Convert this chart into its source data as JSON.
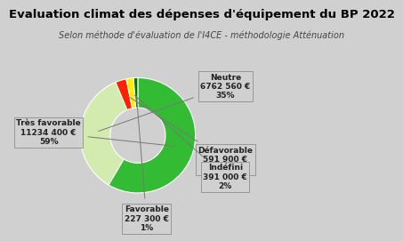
{
  "title": "Evaluation climat des dépenses d'équipement du BP 2022",
  "subtitle": "Selon méthode d'évaluation de l'I4CE - méthodologie Atténuation",
  "categories": [
    "Très favorable",
    "Neutre",
    "Défavorable",
    "Indéfini",
    "Favorable"
  ],
  "values": [
    11234400,
    6762560,
    591900,
    391000,
    227300
  ],
  "percentages": [
    "59%",
    "35%",
    "3%",
    "2%",
    "1%"
  ],
  "colors": [
    "#33bb33",
    "#d4ebb0",
    "#ff2200",
    "#ffee00",
    "#007700"
  ],
  "amounts": [
    "11234 400 €",
    "6762 560 €",
    "591 900 €",
    "391 000 €",
    "227 300 €"
  ],
  "background_color": "#d0d0d0",
  "title_fontsize": 9.5,
  "subtitle_fontsize": 7,
  "label_fontsize": 6.5,
  "donut_width": 0.52
}
